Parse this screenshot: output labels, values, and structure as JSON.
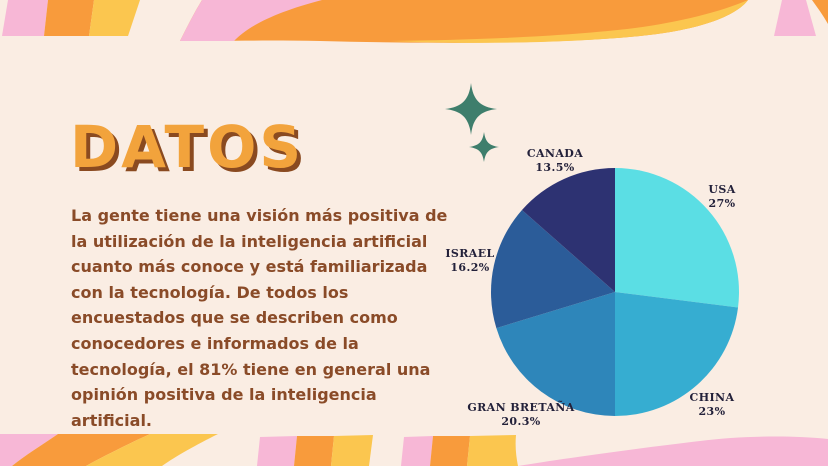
{
  "colors": {
    "background": "#FAEDE3",
    "pink": "#F7B7D6",
    "orange": "#F89B3C",
    "yellow": "#FBC64F",
    "teal_star": "#3E7E6C",
    "title_orange": "#F2A33C",
    "title_shadow": "#8A4A20",
    "body_text": "#8A4B28",
    "label_text": "#23213A"
  },
  "title": "DATOS",
  "paragraph": "La gente tiene una visión más positiva de la utilización de la inteligencia artificial cuanto más conoce y está familiarizada con la tecnología. De todos los encuestados que se describen como conocedores e informados de la tecnología, el 81% tiene en general una opinión positiva de la inteligencia artificial.",
  "chart_data": {
    "type": "pie",
    "start_angle_deg": 0,
    "direction": "clockwise",
    "labels_position": "outside",
    "slices": [
      {
        "label": "USA",
        "value": 27,
        "pct": "27%",
        "color": "#5BDEE4"
      },
      {
        "label": "CHINA",
        "value": 23,
        "pct": "23%",
        "color": "#36ADD1"
      },
      {
        "label": "GRAN BRETAÑA",
        "value": 20.3,
        "pct": "20.3%",
        "color": "#2E86BA"
      },
      {
        "label": "ISRAEL",
        "value": 16.2,
        "pct": "16.2%",
        "color": "#2B5C99"
      },
      {
        "label": "CANADA",
        "value": 13.5,
        "pct": "13.5%",
        "color": "#2D3272"
      }
    ]
  }
}
